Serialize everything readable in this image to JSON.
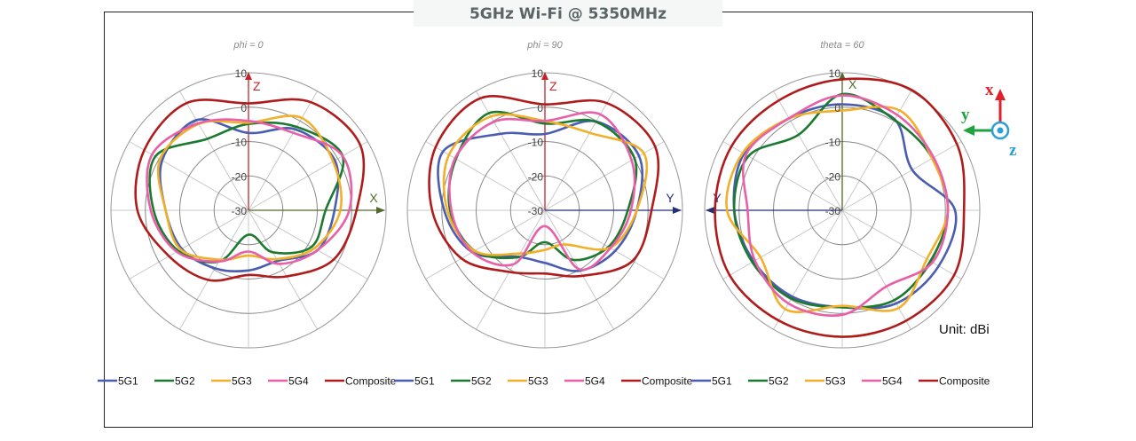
{
  "title": "5GHz Wi-Fi @ 5350MHz",
  "unit_label": "Unit: dBi",
  "coordinate_icon": {
    "x_label": "x",
    "y_label": "y",
    "z_label": "z",
    "x_color": "#e0202a",
    "y_color": "#1fa340",
    "z_color": "#2a9fd8"
  },
  "chart_data": [
    {
      "type": "polar-line",
      "title": "phi = 0",
      "axis_up_label": "Z",
      "axis_side_label": "X",
      "axis_side_direction": "right",
      "radial_ticks": [
        "10",
        "0",
        "-10",
        "-20",
        "-30"
      ],
      "rlim": [
        -30,
        10
      ],
      "angle_step_deg": 30,
      "angle_convention": "0 at top, clockwise",
      "series": [
        {
          "name": "5G1",
          "color": "#4a5db0",
          "values": [
            -7.5,
            -2.8,
            -1,
            -5,
            -6.8,
            -13,
            -12.5,
            -10.5,
            -7.6,
            -5.9,
            -1,
            0.3
          ]
        },
        {
          "name": "5G2",
          "color": "#1c7a30",
          "values": [
            -4.9,
            -2,
            1.6,
            -7.6,
            -8.8,
            -15.9,
            -22.9,
            -12.8,
            -6.4,
            -2.4,
            1.3,
            -6
          ]
        },
        {
          "name": "5G3",
          "color": "#f0b02a",
          "values": [
            -4.5,
            1,
            -1.6,
            -3.3,
            -7.9,
            -13.6,
            -16.8,
            -13.4,
            -7.2,
            -5.9,
            -0.3,
            -1
          ]
        },
        {
          "name": "5G4",
          "color": "#e860a8",
          "values": [
            -4,
            -4,
            1.6,
            -0.7,
            -6.8,
            -12,
            -18,
            -12.8,
            -5.9,
            -1.6,
            2.4,
            -0.8
          ]
        },
        {
          "name": "Composite",
          "color": "#b01c1c",
          "values": [
            1.1,
            6.3,
            7.6,
            1.4,
            -1.4,
            -7.8,
            -11.2,
            -6.6,
            -3.3,
            2.3,
            5,
            6
          ]
        }
      ]
    },
    {
      "type": "polar-line",
      "title": "phi = 90",
      "axis_up_label": "Z",
      "axis_side_label": "Y",
      "axis_side_direction": "right",
      "radial_ticks": [
        "10",
        "0",
        "-10",
        "-20",
        "-30"
      ],
      "rlim": [
        -30,
        10
      ],
      "angle_step_deg": 30,
      "angle_convention": "0 at top, clockwise",
      "series": [
        {
          "name": "5G1",
          "color": "#4a5db0",
          "values": [
            -7.8,
            -0.2,
            1.6,
            -3.3,
            -6.4,
            -9.7,
            -14.7,
            -14.4,
            -5.6,
            -0.7,
            4.2,
            -4.3
          ]
        },
        {
          "name": "5G2",
          "color": "#1c7a30",
          "values": [
            -4.8,
            -0.3,
            0.1,
            -5.9,
            -8.7,
            -13.3,
            -20.7,
            -14.2,
            -6.4,
            -2.4,
            -0.1,
            2.6
          ]
        },
        {
          "name": "5G3",
          "color": "#f0b02a",
          "values": [
            -4,
            -4,
            3.2,
            -3.3,
            -8.2,
            -18.5,
            -18.5,
            -15.5,
            -6.4,
            -1.6,
            2.2,
            1.5
          ]
        },
        {
          "name": "5G4",
          "color": "#e860a8",
          "values": [
            -4,
            2.2,
            -0.9,
            -5,
            -8,
            -10.2,
            -25.4,
            -11.9,
            -5.6,
            -2.8,
            0.2,
            -0.3
          ]
        },
        {
          "name": "Composite",
          "color": "#b01c1c",
          "values": [
            0.8,
            6,
            7,
            1,
            -0.6,
            -8,
            -11.6,
            -9.3,
            -2,
            2.8,
            6.7,
            7.6
          ]
        }
      ]
    },
    {
      "type": "polar-line",
      "title": "theta = 60",
      "axis_up_label": "X",
      "axis_side_label": "Y",
      "axis_side_direction": "left",
      "radial_ticks": [
        "10",
        "0",
        "-10",
        "-20",
        "-30"
      ],
      "rlim": [
        -30,
        10
      ],
      "angle_step_deg": 30,
      "angle_convention": "0 at top, clockwise",
      "series": [
        {
          "name": "5G1",
          "color": "#4a5db0",
          "values": [
            0.8,
            0.5,
            -6.5,
            2.8,
            2.4,
            1.3,
            -1.8,
            -1,
            -0.3,
            1.4,
            3,
            0.9
          ]
        },
        {
          "name": "5G2",
          "color": "#1c7a30",
          "values": [
            3.8,
            0.4,
            0.4,
            0.7,
            -0.4,
            0.2,
            -1.8,
            -0.4,
            0.2,
            1.4,
            1.5,
            -4.6
          ]
        },
        {
          "name": "5G3",
          "color": "#f0b02a",
          "values": [
            -1,
            3.5,
            0.2,
            0.7,
            -1.6,
            2.8,
            -2.2,
            3.2,
            -2.6,
            3.5,
            3.4,
            0.8
          ]
        },
        {
          "name": "5G4",
          "color": "#e860a8",
          "values": [
            3.4,
            2,
            0.7,
            0.7,
            0.3,
            -4.4,
            0.4,
            1.3,
            -0.7,
            -2.5,
            2.3,
            0.9
          ]
        },
        {
          "name": "Composite",
          "color": "#b01c1c",
          "values": [
            8.1,
            10.4,
            8.5,
            5.4,
            7.6,
            7.1,
            6.8,
            7,
            7.8,
            7,
            7.2,
            6.9
          ]
        }
      ]
    }
  ]
}
